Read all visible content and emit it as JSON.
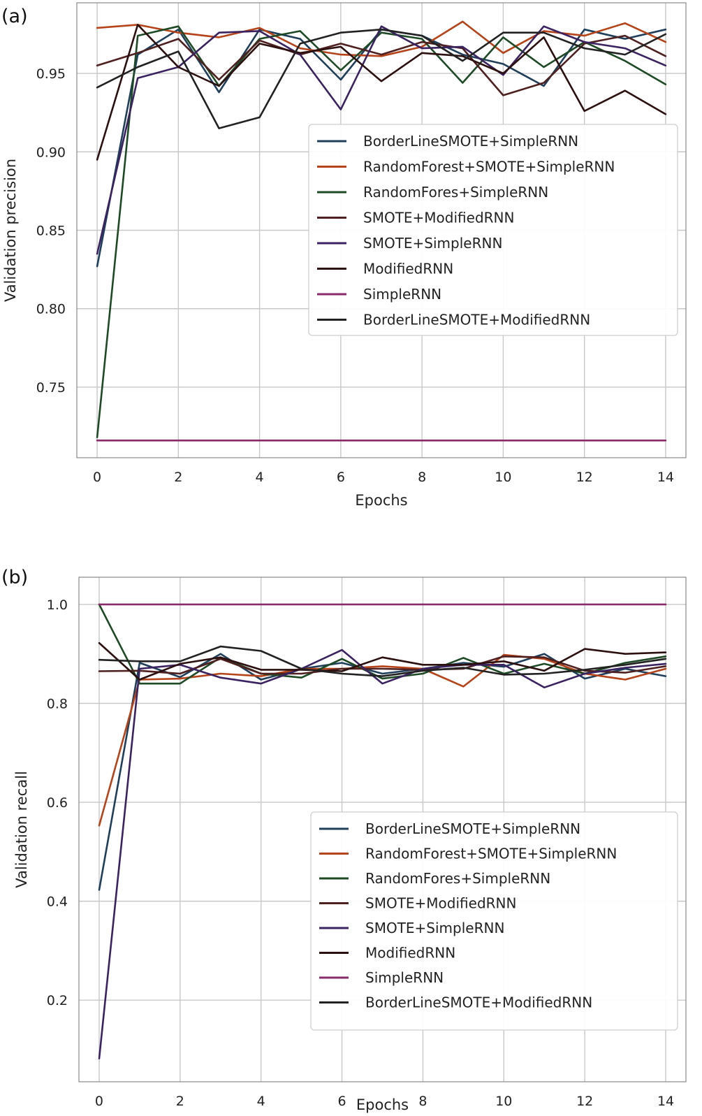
{
  "chart_data": [
    {
      "panel_label": "(a)",
      "type": "line",
      "xlabel": "Epochs",
      "ylabel": "Validation precision",
      "xlim": [
        -0.5,
        14.5
      ],
      "ylim": [
        0.705,
        0.995
      ],
      "xticks": [
        0,
        2,
        4,
        6,
        8,
        10,
        12,
        14
      ],
      "xtick_labels": [
        "0",
        "2",
        "4",
        "6",
        "8",
        "10",
        "12",
        "14"
      ],
      "yticks": [
        0.75,
        0.8,
        0.85,
        0.9,
        0.95
      ],
      "ytick_labels": [
        "0.75",
        "0.80",
        "0.85",
        "0.90",
        "0.95"
      ],
      "grid": true,
      "legend_position": "center-right",
      "x": [
        0,
        1,
        2,
        3,
        4,
        5,
        6,
        7,
        8,
        9,
        10,
        11,
        12,
        13,
        14
      ],
      "series": [
        {
          "name": "BorderLineSMOTE+SimpleRNN",
          "color": "#1f3f5b",
          "values": [
            0.827,
            0.962,
            0.978,
            0.938,
            0.978,
            0.972,
            0.946,
            0.978,
            0.974,
            0.962,
            0.956,
            0.942,
            0.978,
            0.972,
            0.978
          ]
        },
        {
          "name": "RandomForest+SMOTE+SimpleRNN",
          "color": "#b5441a",
          "values": [
            0.979,
            0.981,
            0.976,
            0.973,
            0.979,
            0.966,
            0.962,
            0.961,
            0.967,
            0.983,
            0.963,
            0.977,
            0.974,
            0.982,
            0.97
          ]
        },
        {
          "name": "RandomFores+SimpleRNN",
          "color": "#1e4a26",
          "values": [
            0.718,
            0.974,
            0.98,
            0.942,
            0.972,
            0.977,
            0.952,
            0.976,
            0.972,
            0.944,
            0.973,
            0.954,
            0.97,
            0.958,
            0.943
          ]
        },
        {
          "name": "SMOTE+ModifiedRNN",
          "color": "#4e2020",
          "values": [
            0.955,
            0.963,
            0.972,
            0.946,
            0.971,
            0.962,
            0.969,
            0.962,
            0.97,
            0.966,
            0.936,
            0.944,
            0.969,
            0.974,
            0.961
          ]
        },
        {
          "name": "SMOTE+SimpleRNN",
          "color": "#3a2360",
          "values": [
            0.835,
            0.947,
            0.954,
            0.976,
            0.977,
            0.962,
            0.927,
            0.98,
            0.966,
            0.967,
            0.949,
            0.98,
            0.97,
            0.966,
            0.955
          ]
        },
        {
          "name": "ModifiedRNN",
          "color": "#2c1010",
          "values": [
            0.895,
            0.981,
            0.954,
            0.942,
            0.969,
            0.963,
            0.967,
            0.945,
            0.963,
            0.961,
            0.95,
            0.973,
            0.926,
            0.939,
            0.924
          ]
        },
        {
          "name": "SimpleRNN",
          "color": "#8b2a6b",
          "values": [
            0.716,
            0.716,
            0.716,
            0.716,
            0.716,
            0.716,
            0.716,
            0.716,
            0.716,
            0.716,
            0.716,
            0.716,
            0.716,
            0.716,
            0.716
          ]
        },
        {
          "name": "BorderLineSMOTE+ModifiedRNN",
          "color": "#222222",
          "values": [
            0.941,
            0.954,
            0.964,
            0.915,
            0.922,
            0.969,
            0.976,
            0.978,
            0.974,
            0.958,
            0.976,
            0.976,
            0.966,
            0.962,
            0.975
          ]
        }
      ]
    },
    {
      "panel_label": "(b)",
      "type": "line",
      "xlabel": "Epochs",
      "ylabel": "Validation recall",
      "xlim": [
        -0.5,
        14.5
      ],
      "ylim": [
        0.035,
        1.055
      ],
      "xticks": [
        0,
        2,
        4,
        6,
        8,
        10,
        12,
        14
      ],
      "xtick_labels": [
        "0",
        "2",
        "4",
        "6",
        "8",
        "10",
        "12",
        "14"
      ],
      "yticks": [
        0.2,
        0.4,
        0.6,
        0.8,
        1.0
      ],
      "ytick_labels": [
        "0.2",
        "0.4",
        "0.6",
        "0.8",
        "1.0"
      ],
      "grid": true,
      "legend_position": "lower-right",
      "x": [
        0,
        1,
        2,
        3,
        4,
        5,
        6,
        7,
        8,
        9,
        10,
        11,
        12,
        13,
        14
      ],
      "series": [
        {
          "name": "BorderLineSMOTE+SimpleRNN",
          "color": "#1f3f5b",
          "values": [
            0.423,
            0.882,
            0.853,
            0.9,
            0.848,
            0.87,
            0.882,
            0.86,
            0.87,
            0.882,
            0.874,
            0.9,
            0.85,
            0.87,
            0.855
          ]
        },
        {
          "name": "RandomForest+SMOTE+SimpleRNN",
          "color": "#b5441a",
          "values": [
            0.553,
            0.848,
            0.85,
            0.86,
            0.855,
            0.87,
            0.87,
            0.875,
            0.87,
            0.834,
            0.898,
            0.89,
            0.86,
            0.848,
            0.87
          ]
        },
        {
          "name": "RandomFores+SimpleRNN",
          "color": "#1e4a26",
          "values": [
            1.0,
            0.84,
            0.84,
            0.893,
            0.86,
            0.852,
            0.89,
            0.85,
            0.86,
            0.892,
            0.86,
            0.88,
            0.86,
            0.882,
            0.895
          ]
        },
        {
          "name": "SMOTE+ModifiedRNN",
          "color": "#4e2020",
          "values": [
            0.865,
            0.866,
            0.86,
            0.89,
            0.86,
            0.86,
            0.87,
            0.87,
            0.868,
            0.87,
            0.895,
            0.893,
            0.866,
            0.862,
            0.875
          ]
        },
        {
          "name": "SMOTE+SimpleRNN",
          "color": "#3a2360",
          "values": [
            0.082,
            0.87,
            0.878,
            0.852,
            0.84,
            0.87,
            0.908,
            0.84,
            0.87,
            0.878,
            0.878,
            0.832,
            0.86,
            0.872,
            0.88
          ]
        },
        {
          "name": "ModifiedRNN",
          "color": "#2c1010",
          "values": [
            0.922,
            0.848,
            0.88,
            0.893,
            0.868,
            0.868,
            0.865,
            0.893,
            0.878,
            0.878,
            0.885,
            0.866,
            0.91,
            0.9,
            0.903
          ]
        },
        {
          "name": "SimpleRNN",
          "color": "#8b2a6b",
          "values": [
            1.0,
            1.0,
            1.0,
            1.0,
            1.0,
            1.0,
            1.0,
            1.0,
            1.0,
            1.0,
            1.0,
            1.0,
            1.0,
            1.0,
            1.0
          ]
        },
        {
          "name": "BorderLineSMOTE+ModifiedRNN",
          "color": "#222222",
          "values": [
            0.888,
            0.885,
            0.885,
            0.915,
            0.906,
            0.87,
            0.86,
            0.855,
            0.866,
            0.872,
            0.858,
            0.86,
            0.868,
            0.878,
            0.89
          ]
        }
      ]
    }
  ]
}
